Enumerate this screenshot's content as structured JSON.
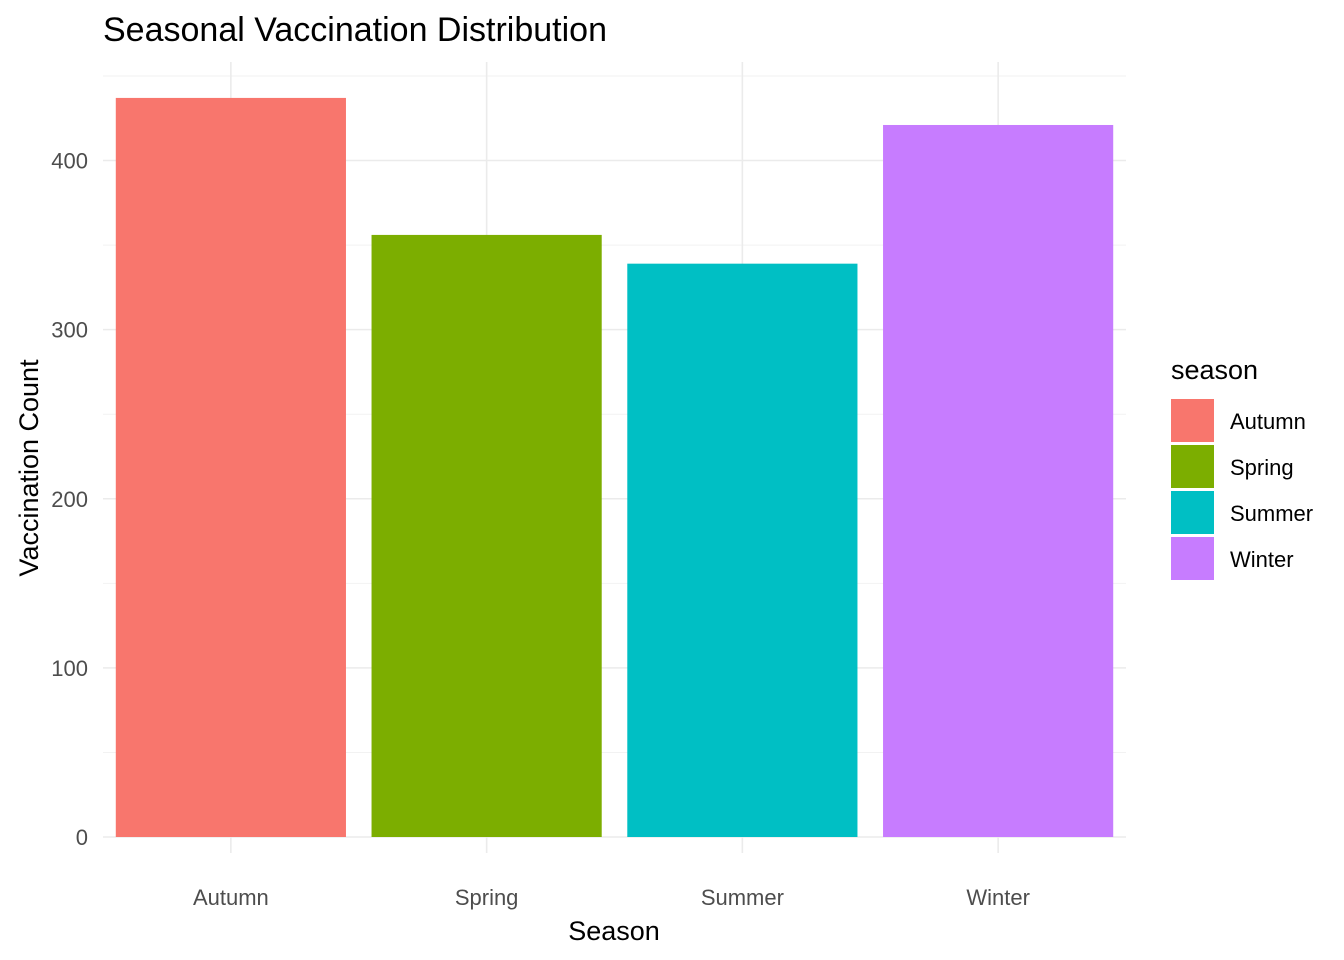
{
  "chart_data": {
    "type": "bar",
    "title": "Seasonal Vaccination Distribution",
    "xlabel": "Season",
    "ylabel": "Vaccination Count",
    "categories": [
      "Autumn",
      "Spring",
      "Summer",
      "Winter"
    ],
    "values": [
      437,
      356,
      339,
      421
    ],
    "ylim": [
      0,
      450
    ],
    "yticks": [
      0,
      100,
      200,
      300,
      400
    ],
    "grid": true,
    "legend": {
      "title": "season",
      "placement": "right",
      "entries": [
        "Autumn",
        "Spring",
        "Summer",
        "Winter"
      ]
    },
    "colors": [
      "#F8766D",
      "#7CAE00",
      "#00BFC4",
      "#C77CFF"
    ]
  }
}
